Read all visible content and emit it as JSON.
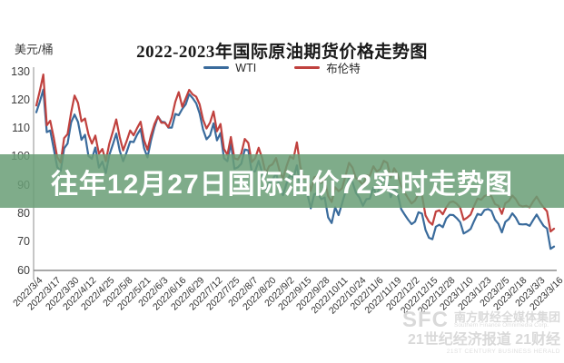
{
  "banner": {
    "text": "往年12月27日国际油价72实时走势图",
    "bg_color": "rgba(106,158,119,0.86)",
    "text_color": "#ffffff"
  },
  "watermark": {
    "sfc": "SFC",
    "org_cn": "南方财经全媒体集团",
    "org_en": "Southern Finance Omnimedia Corp.",
    "brand_cn": "21世纪经济报道 21财经",
    "brand_en": "21ST CENTURY BUSINESS HERALD"
  },
  "chart_data": {
    "type": "line",
    "title": "2022-2023年国际原油期货价格走势图",
    "ylabel": "美元/桶",
    "ylim": [
      60,
      130
    ],
    "yticks": [
      130,
      120,
      110,
      100,
      90,
      80,
      70,
      60
    ],
    "grid": false,
    "legend_position": "top-center",
    "axis_color": "#9a9a9a",
    "x_tick_labels": [
      "2022/3/4",
      "2022/3/17",
      "2022/3/30",
      "2022/4/12",
      "2022/4/25",
      "2022/5/8",
      "2022/5/21",
      "2022/6/3",
      "2022/6/16",
      "2022/6/29",
      "2022/7/12",
      "2022/7/25",
      "2022/8/7",
      "2022/8/20",
      "2022/9/2",
      "2022/9/15",
      "2022/9/28",
      "2022/10/11",
      "2022/10/24",
      "2022/11/6",
      "2022/11/19",
      "2022/12/2",
      "2022/12/15",
      "2022/12/28",
      "2023/1/10",
      "2023/1/23",
      "2023/2/5",
      "2023/2/18",
      "2023/3/3",
      "2023/3/16"
    ],
    "series": [
      {
        "name": "WTI",
        "color": "#3a6b9c",
        "values": [
          115.7,
          119.4,
          123.7,
          108.7,
          109.3,
          103.0,
          96.4,
          95.0,
          103.0,
          104.7,
          112.1,
          114.9,
          112.3,
          106.0,
          107.8,
          100.3,
          99.3,
          103.3,
          96.2,
          98.3,
          94.3,
          100.6,
          104.3,
          108.2,
          102.2,
          98.5,
          101.7,
          105.4,
          105.2,
          107.8,
          109.8,
          103.1,
          99.8,
          105.7,
          110.5,
          114.2,
          112.4,
          112.2,
          110.3,
          110.3,
          115.1,
          114.7,
          116.9,
          118.5,
          122.1,
          120.7,
          118.9,
          115.3,
          109.6,
          106.2,
          107.6,
          111.8,
          105.8,
          108.4,
          99.5,
          98.5,
          104.8,
          95.8,
          96.3,
          97.6,
          102.6,
          102.3,
          94.7,
          95.0,
          98.6,
          94.4,
          88.5,
          90.8,
          91.9,
          94.3,
          89.4,
          86.5,
          90.5,
          93.7,
          92.5,
          97.0,
          89.6,
          86.9,
          86.9,
          81.9,
          86.8,
          87.3,
          85.1,
          85.7,
          78.7,
          76.7,
          82.2,
          79.5,
          83.6,
          87.8,
          92.6,
          91.1,
          87.3,
          85.6,
          82.8,
          85.1,
          85.3,
          89.1,
          86.5,
          90.0,
          92.6,
          91.8,
          85.8,
          88.9,
          86.9,
          81.6,
          79.7,
          77.9,
          76.3,
          77.2,
          80.5,
          80.0,
          74.3,
          71.5,
          71.0,
          75.4,
          76.1,
          75.2,
          78.3,
          79.6,
          79.5,
          78.4,
          77.0,
          73.0,
          73.7,
          74.6,
          77.4,
          79.9,
          79.5,
          81.3,
          81.6,
          81.0,
          77.9,
          76.4,
          73.4,
          77.1,
          78.1,
          80.1,
          78.6,
          76.3,
          76.2,
          76.3,
          75.7,
          77.7,
          79.7,
          77.6,
          75.7,
          74.8,
          67.6,
          68.4
        ]
      },
      {
        "name": "布伦特",
        "color": "#c0413e",
        "values": [
          118.1,
          123.2,
          129.0,
          111.1,
          112.7,
          106.9,
          99.9,
          98.0,
          106.6,
          108.0,
          115.6,
          121.6,
          119.0,
          112.5,
          113.5,
          107.9,
          104.7,
          107.5,
          101.1,
          102.8,
          98.5,
          104.6,
          108.8,
          113.2,
          107.0,
          102.3,
          105.6,
          109.3,
          107.6,
          110.1,
          112.4,
          105.9,
          102.5,
          107.5,
          111.6,
          114.2,
          112.0,
          112.0,
          110.5,
          114.0,
          119.4,
          122.8,
          117.6,
          120.6,
          123.6,
          122.0,
          121.2,
          118.5,
          113.1,
          110.0,
          112.1,
          116.0,
          109.0,
          111.6,
          102.8,
          100.7,
          107.0,
          99.5,
          99.1,
          101.2,
          106.3,
          104.9,
          98.2,
          99.5,
          103.2,
          99.5,
          94.1,
          96.7,
          97.4,
          99.6,
          95.1,
          92.3,
          96.6,
          100.2,
          99.3,
          105.1,
          96.5,
          92.4,
          92.8,
          88.0,
          92.8,
          93.2,
          90.8,
          92.0,
          86.2,
          84.1,
          89.3,
          87.9,
          88.9,
          93.4,
          97.9,
          96.2,
          92.5,
          91.6,
          90.0,
          93.5,
          93.3,
          96.7,
          94.8,
          95.7,
          98.6,
          97.9,
          92.7,
          96.0,
          93.9,
          89.8,
          87.5,
          85.4,
          83.6,
          84.6,
          87.0,
          86.6,
          79.4,
          77.2,
          76.1,
          80.7,
          81.2,
          79.8,
          82.2,
          84.0,
          84.3,
          83.5,
          82.1,
          77.8,
          78.6,
          79.7,
          82.7,
          85.3,
          84.9,
          86.2,
          86.7,
          86.1,
          83.4,
          82.8,
          79.9,
          83.7,
          84.5,
          86.4,
          85.1,
          83.0,
          82.5,
          82.8,
          82.2,
          84.3,
          86.0,
          83.9,
          82.2,
          80.8,
          73.7,
          74.7
        ]
      }
    ]
  }
}
